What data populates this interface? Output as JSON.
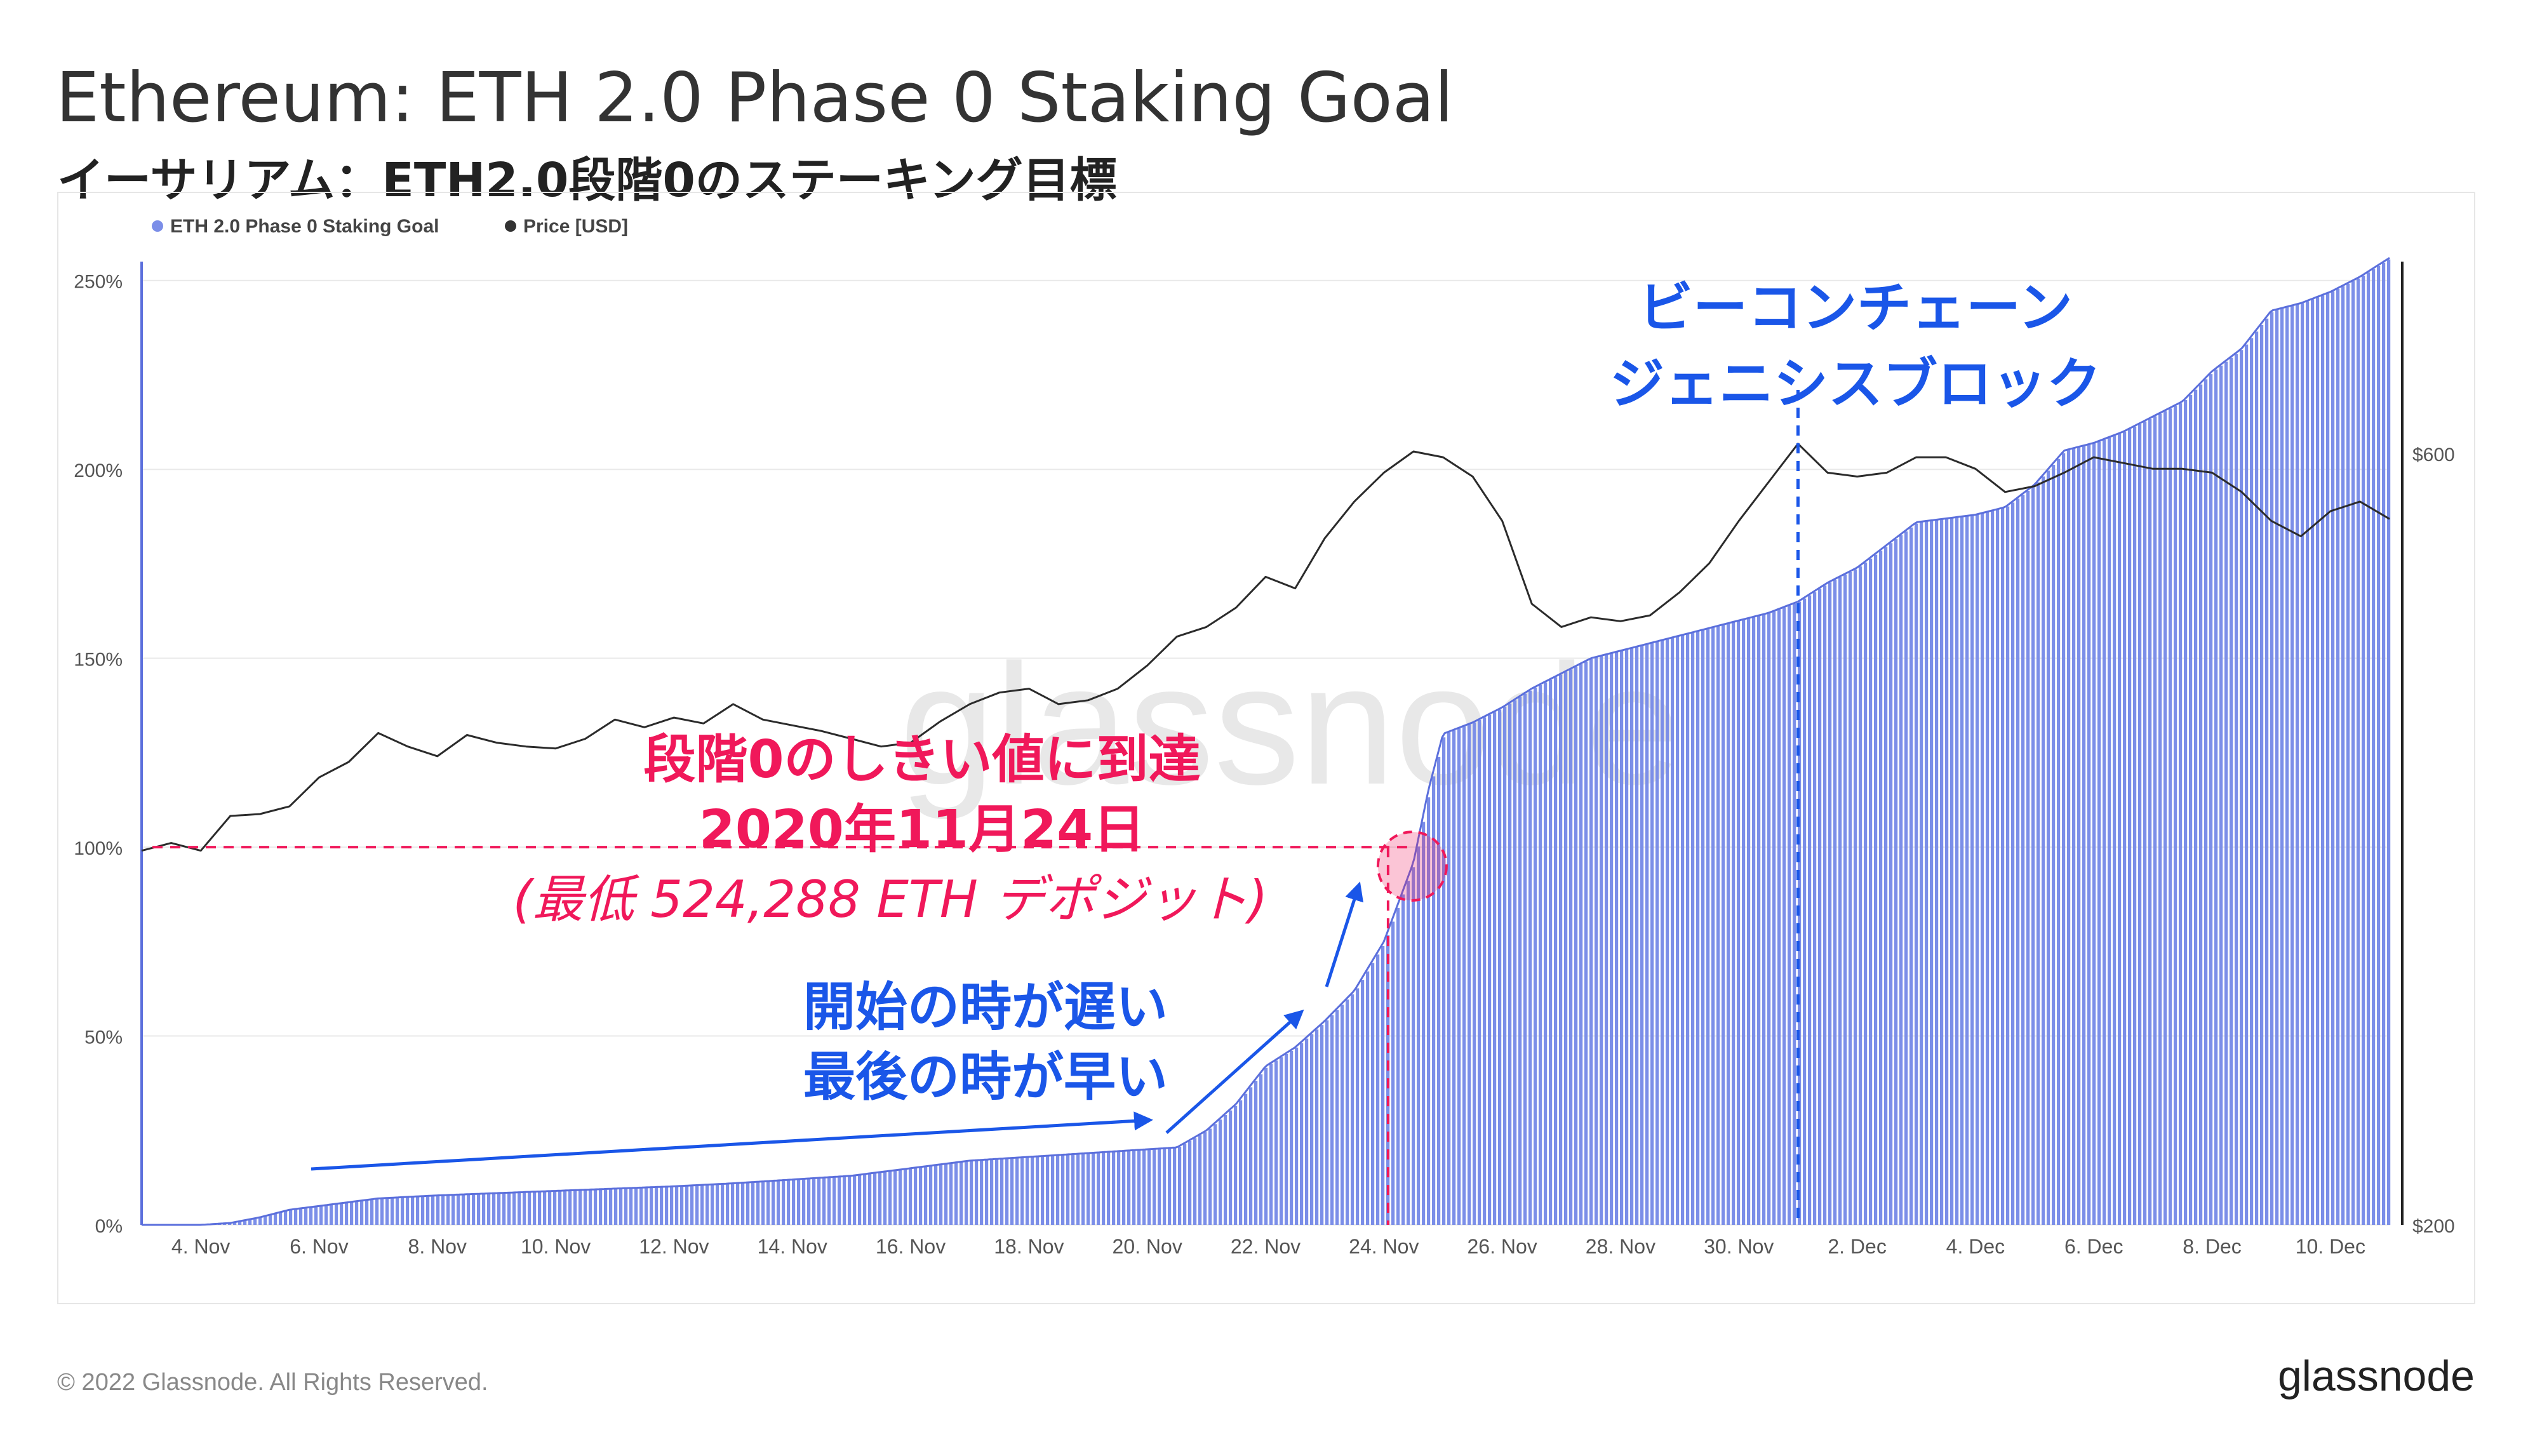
{
  "header": {
    "title": "Ethereum: ETH 2.0 Phase 0 Staking Goal",
    "subtitle": "イーサリアム：ETH2.0段階0のステーキング目標"
  },
  "footer": {
    "copyright": "© 2022 Glassnode. All Rights Reserved.",
    "logo": "glassnode"
  },
  "watermark": "glassnode",
  "colors": {
    "goal_fill": "#7b8ee8",
    "goal_edge": "#5b6fdc",
    "price_line": "#2b2b2b",
    "annotation_red": "#f0185a",
    "annotation_blue": "#1a56e8",
    "axis_text": "#555555",
    "grid": "#e9e9e9",
    "watermark": "#d9d9d9"
  },
  "chart_data": {
    "type": "area",
    "legend_position": "top-left",
    "grid": true,
    "x_ticks": [
      "4. Nov",
      "6. Nov",
      "8. Nov",
      "10. Nov",
      "12. Nov",
      "14. Nov",
      "16. Nov",
      "18. Nov",
      "20. Nov",
      "22. Nov",
      "24. Nov",
      "26. Nov",
      "28. Nov",
      "30. Nov",
      "2. Dec",
      "4. Dec",
      "6. Dec",
      "8. Dec",
      "10. Dec"
    ],
    "x_range": [
      "2020-11-03",
      "2020-12-11"
    ],
    "y_left": {
      "ticks": [
        "0%",
        "50%",
        "100%",
        "150%",
        "200%",
        "250%"
      ],
      "range": [
        0,
        255
      ]
    },
    "y_right": {
      "ticks": [
        "$200",
        "$600"
      ],
      "range": [
        200,
        600
      ]
    },
    "series": [
      {
        "name": "ETH 2.0 Phase 0 Staking Goal",
        "axis": "left",
        "points": [
          [
            "2020-11-03T00",
            0
          ],
          [
            "2020-11-04T00",
            0
          ],
          [
            "2020-11-04T12",
            0.5
          ],
          [
            "2020-11-05T00",
            2
          ],
          [
            "2020-11-05T12",
            4
          ],
          [
            "2020-11-06T00",
            5
          ],
          [
            "2020-11-06T12",
            6
          ],
          [
            "2020-11-07T00",
            7
          ],
          [
            "2020-11-08T00",
            7.8
          ],
          [
            "2020-11-09T00",
            8.4
          ],
          [
            "2020-11-10T00",
            9
          ],
          [
            "2020-11-11T00",
            9.6
          ],
          [
            "2020-11-12T00",
            10.2
          ],
          [
            "2020-11-13T00",
            11
          ],
          [
            "2020-11-14T00",
            12
          ],
          [
            "2020-11-15T00",
            13
          ],
          [
            "2020-11-16T00",
            15
          ],
          [
            "2020-11-17T00",
            17
          ],
          [
            "2020-11-18T00",
            18
          ],
          [
            "2020-11-19T00",
            19
          ],
          [
            "2020-11-20T00",
            20
          ],
          [
            "2020-11-20T12",
            20.5
          ],
          [
            "2020-11-21T00",
            25
          ],
          [
            "2020-11-21T12",
            32
          ],
          [
            "2020-11-22T00",
            42
          ],
          [
            "2020-11-22T12",
            47
          ],
          [
            "2020-11-23T00",
            54
          ],
          [
            "2020-11-23T12",
            62
          ],
          [
            "2020-11-24T00",
            75
          ],
          [
            "2020-11-24T12",
            96
          ],
          [
            "2020-11-24T18",
            115
          ],
          [
            "2020-11-25T00",
            130
          ],
          [
            "2020-11-25T12",
            133
          ],
          [
            "2020-11-26T00",
            137
          ],
          [
            "2020-11-26T12",
            142
          ],
          [
            "2020-11-27T00",
            146
          ],
          [
            "2020-11-27T12",
            150
          ],
          [
            "2020-11-28T00",
            152
          ],
          [
            "2020-11-28T12",
            154
          ],
          [
            "2020-11-29T00",
            156
          ],
          [
            "2020-11-29T12",
            158
          ],
          [
            "2020-11-30T00",
            160
          ],
          [
            "2020-11-30T12",
            162
          ],
          [
            "2020-12-01T00",
            165
          ],
          [
            "2020-12-01T12",
            170
          ],
          [
            "2020-12-02T00",
            174
          ],
          [
            "2020-12-02T12",
            180
          ],
          [
            "2020-12-03T00",
            186
          ],
          [
            "2020-12-03T12",
            187
          ],
          [
            "2020-12-04T00",
            188
          ],
          [
            "2020-12-04T12",
            190
          ],
          [
            "2020-12-05T00",
            196
          ],
          [
            "2020-12-05T12",
            205
          ],
          [
            "2020-12-06T00",
            207
          ],
          [
            "2020-12-06T12",
            210
          ],
          [
            "2020-12-07T00",
            214
          ],
          [
            "2020-12-07T12",
            218
          ],
          [
            "2020-12-08T00",
            226
          ],
          [
            "2020-12-08T12",
            232
          ],
          [
            "2020-12-09T00",
            242
          ],
          [
            "2020-12-09T12",
            244
          ],
          [
            "2020-12-10T00",
            247
          ],
          [
            "2020-12-10T12",
            251
          ],
          [
            "2020-12-11T00",
            256
          ]
        ]
      },
      {
        "name": "Price [USD]",
        "axis": "right",
        "points": [
          [
            "2020-11-03T00",
            394
          ],
          [
            "2020-11-03T12",
            398
          ],
          [
            "2020-11-04T00",
            394
          ],
          [
            "2020-11-04T12",
            412
          ],
          [
            "2020-11-05T00",
            413
          ],
          [
            "2020-11-05T12",
            417
          ],
          [
            "2020-11-06T00",
            432
          ],
          [
            "2020-11-06T12",
            440
          ],
          [
            "2020-11-07T00",
            455
          ],
          [
            "2020-11-07T12",
            448
          ],
          [
            "2020-11-08T00",
            443
          ],
          [
            "2020-11-08T12",
            454
          ],
          [
            "2020-11-09T00",
            450
          ],
          [
            "2020-11-09T12",
            448
          ],
          [
            "2020-11-10T00",
            447
          ],
          [
            "2020-11-10T12",
            452
          ],
          [
            "2020-11-11T00",
            462
          ],
          [
            "2020-11-11T12",
            458
          ],
          [
            "2020-11-12T00",
            463
          ],
          [
            "2020-11-12T12",
            460
          ],
          [
            "2020-11-13T00",
            470
          ],
          [
            "2020-11-13T12",
            462
          ],
          [
            "2020-11-14T00",
            459
          ],
          [
            "2020-11-14T12",
            456
          ],
          [
            "2020-11-15T00",
            452
          ],
          [
            "2020-11-15T12",
            448
          ],
          [
            "2020-11-16T00",
            450
          ],
          [
            "2020-11-16T12",
            461
          ],
          [
            "2020-11-17T00",
            470
          ],
          [
            "2020-11-17T12",
            476
          ],
          [
            "2020-11-18T00",
            478
          ],
          [
            "2020-11-18T12",
            470
          ],
          [
            "2020-11-19T00",
            472
          ],
          [
            "2020-11-19T12",
            478
          ],
          [
            "2020-11-20T00",
            490
          ],
          [
            "2020-11-20T12",
            505
          ],
          [
            "2020-11-21T00",
            510
          ],
          [
            "2020-11-21T12",
            520
          ],
          [
            "2020-11-22T00",
            536
          ],
          [
            "2020-11-22T12",
            530
          ],
          [
            "2020-11-23T00",
            556
          ],
          [
            "2020-11-23T12",
            575
          ],
          [
            "2020-11-24T00",
            590
          ],
          [
            "2020-11-24T12",
            601
          ],
          [
            "2020-11-25T00",
            598
          ],
          [
            "2020-11-25T12",
            588
          ],
          [
            "2020-11-26T00",
            565
          ],
          [
            "2020-11-26T12",
            522
          ],
          [
            "2020-11-27T00",
            510
          ],
          [
            "2020-11-27T12",
            515
          ],
          [
            "2020-11-28T00",
            513
          ],
          [
            "2020-11-28T12",
            516
          ],
          [
            "2020-11-29T00",
            528
          ],
          [
            "2020-11-29T12",
            543
          ],
          [
            "2020-11-30T00",
            565
          ],
          [
            "2020-11-30T12",
            585
          ],
          [
            "2020-12-01T00",
            605
          ],
          [
            "2020-12-01T12",
            590
          ],
          [
            "2020-12-02T00",
            588
          ],
          [
            "2020-12-02T12",
            590
          ],
          [
            "2020-12-03T00",
            598
          ],
          [
            "2020-12-03T12",
            598
          ],
          [
            "2020-12-04T00",
            592
          ],
          [
            "2020-12-04T12",
            580
          ],
          [
            "2020-12-05T00",
            583
          ],
          [
            "2020-12-05T12",
            590
          ],
          [
            "2020-12-06T00",
            598
          ],
          [
            "2020-12-06T12",
            595
          ],
          [
            "2020-12-07T00",
            592
          ],
          [
            "2020-12-07T12",
            592
          ],
          [
            "2020-12-08T00",
            590
          ],
          [
            "2020-12-08T12",
            580
          ],
          [
            "2020-12-09T00",
            565
          ],
          [
            "2020-12-09T12",
            557
          ],
          [
            "2020-12-10T00",
            570
          ],
          [
            "2020-12-10T12",
            575
          ],
          [
            "2020-12-11T00",
            566
          ]
        ]
      }
    ],
    "annotations": {
      "threshold": {
        "level_pct": 100,
        "date": "2020-11-24T12",
        "line1": "段階0のしきい値に到達",
        "line2": "2020年11月24日",
        "line3": "(最低 524,288 ETH デポジット)"
      },
      "beacon": {
        "date": "2020-12-01T00",
        "line1": "ビーコンチェーン",
        "line2": "ジェニシスブロック"
      },
      "pace": {
        "line1": "開始の時が遅い",
        "line2": "最後の時が早い"
      }
    }
  }
}
